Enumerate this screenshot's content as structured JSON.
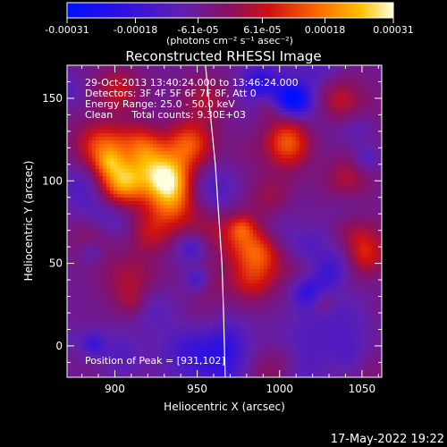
{
  "colorbar": {
    "tick_labels": [
      "-0.00031",
      "-0.00018",
      "-6.1e-05",
      "6.1e-05",
      "0.00018",
      "0.00031"
    ],
    "tick_values": [
      -0.00031,
      -0.00018,
      -6.1e-05,
      6.1e-05,
      0.00018,
      0.00031
    ],
    "range": [
      -0.00031,
      0.00031
    ],
    "unit_label": "(photons cm⁻² s⁻¹ asec⁻²)"
  },
  "chart_data": {
    "type": "heatmap",
    "title": "Reconstructed RHESSI Image",
    "xlabel": "Heliocentric X (arcsec)",
    "ylabel": "Heliocentric Y (arcsec)",
    "xlim": [
      871,
      1062
    ],
    "ylim": [
      -19,
      170
    ],
    "x_ticks": [
      900,
      950,
      1000,
      1050
    ],
    "y_ticks": [
      0,
      50,
      100,
      150
    ],
    "annotations": [
      "29-Oct-2013 13:40:24.000 to 13:46:24.000",
      "Detectors: 3F 4F 5F 6F 7F 8F, Att 0",
      "Energy Range: 25.0 - 50.0 keV",
      "Clean      Total counts: 9.30E+03"
    ],
    "peak_label": "Position of Peak = [931,102]",
    "peak": [
      931,
      102
    ],
    "limb_points": [
      [
        955,
        170
      ],
      [
        958,
        140
      ],
      [
        961,
        110
      ],
      [
        963,
        80
      ],
      [
        965,
        50
      ],
      [
        966,
        20
      ],
      [
        967,
        -19
      ]
    ],
    "sources": [
      {
        "x": 905,
        "y": 100,
        "amp": 0.00031
      },
      {
        "x": 931,
        "y": 102,
        "amp": 0.00031
      },
      {
        "x": 915,
        "y": 118,
        "amp": 0.00025
      },
      {
        "x": 893,
        "y": 120,
        "amp": 0.00018
      },
      {
        "x": 945,
        "y": 122,
        "amp": 0.0002
      },
      {
        "x": 935,
        "y": 88,
        "amp": 0.00016
      },
      {
        "x": 988,
        "y": 58,
        "amp": 0.00022
      },
      {
        "x": 983,
        "y": 42,
        "amp": 0.00016
      },
      {
        "x": 888,
        "y": 66,
        "amp": 0.00014
      },
      {
        "x": 922,
        "y": 70,
        "amp": 0.00012
      },
      {
        "x": 1005,
        "y": 125,
        "amp": 0.00012
      },
      {
        "x": 1040,
        "y": 100,
        "amp": 0.0001
      },
      {
        "x": 1050,
        "y": 55,
        "amp": 0.0001
      },
      {
        "x": 955,
        "y": 150,
        "amp": 0.0001
      },
      {
        "x": 902,
        "y": 155,
        "amp": 0.00012
      },
      {
        "x": 995,
        "y": 90,
        "amp": 9e-05
      }
    ]
  },
  "timestamp": "17-May-2022 19:22"
}
